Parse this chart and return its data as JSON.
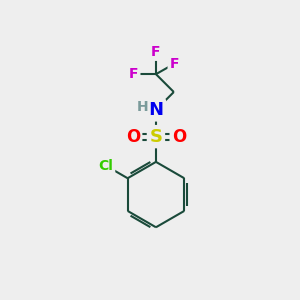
{
  "bg_color": "#eeeeee",
  "atom_colors": {
    "C": "#000000",
    "H": "#7a9a9a",
    "N": "#0000ee",
    "O": "#ff0000",
    "S": "#cccc00",
    "F": "#cc00cc",
    "Cl": "#33cc00"
  },
  "bond_color": "#1a4a3a",
  "bond_width": 1.5,
  "font_size_atom": 11,
  "font_size_small": 9,
  "figsize": [
    3.0,
    3.0
  ],
  "dpi": 100
}
